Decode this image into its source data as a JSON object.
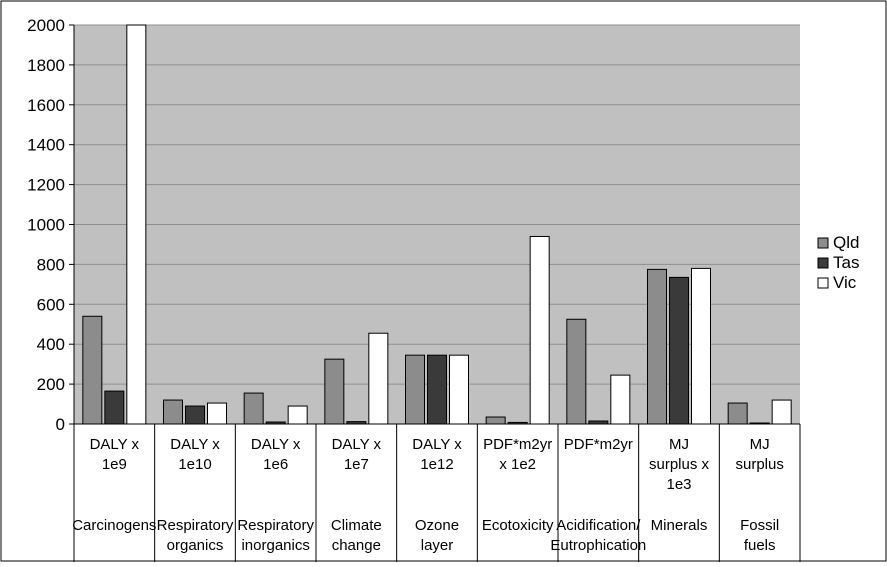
{
  "colors": {
    "plot_bg": "#c0c0c0",
    "grid": "#8f8f8f",
    "axis": "#000000",
    "frame": "#000000",
    "Qld": "#8c8c8c",
    "Tas": "#3a3a3a",
    "Vic": "#ffffff"
  },
  "chart_data": {
    "type": "bar",
    "ylim": [
      0,
      2000
    ],
    "yticks": [
      0,
      200,
      400,
      600,
      800,
      1000,
      1200,
      1400,
      1600,
      1800,
      2000
    ],
    "grid": true,
    "legend_placement": "right",
    "categories": [
      {
        "unit": [
          "DALY x",
          "1e9"
        ],
        "name": [
          "Carcinogens"
        ]
      },
      {
        "unit": [
          "DALY x",
          "1e10"
        ],
        "name": [
          "Respiratory",
          "organics"
        ]
      },
      {
        "unit": [
          "DALY x",
          "1e6"
        ],
        "name": [
          "Respiratory",
          "inorganics"
        ]
      },
      {
        "unit": [
          "DALY x",
          "1e7"
        ],
        "name": [
          "Climate",
          "change"
        ]
      },
      {
        "unit": [
          "DALY x",
          "1e12"
        ],
        "name": [
          "Ozone",
          "layer"
        ]
      },
      {
        "unit": [
          "PDF*m2yr",
          "x 1e2"
        ],
        "name": [
          "Ecotoxicity"
        ]
      },
      {
        "unit": [
          "PDF*m2yr"
        ],
        "name": [
          "Acidification/",
          "Eutrophication"
        ]
      },
      {
        "unit": [
          "MJ",
          "surplus x",
          "1e3"
        ],
        "name": [
          "Minerals"
        ]
      },
      {
        "unit": [
          "MJ",
          "surplus"
        ],
        "name": [
          "Fossil",
          "fuels"
        ]
      }
    ],
    "series": [
      {
        "name": "Qld",
        "values": [
          540,
          120,
          155,
          325,
          345,
          35,
          525,
          775,
          105
        ]
      },
      {
        "name": "Tas",
        "values": [
          165,
          90,
          10,
          12,
          345,
          8,
          15,
          735,
          3
        ]
      },
      {
        "name": "Vic",
        "values": [
          2000,
          105,
          90,
          455,
          345,
          940,
          245,
          780,
          120
        ]
      }
    ]
  }
}
